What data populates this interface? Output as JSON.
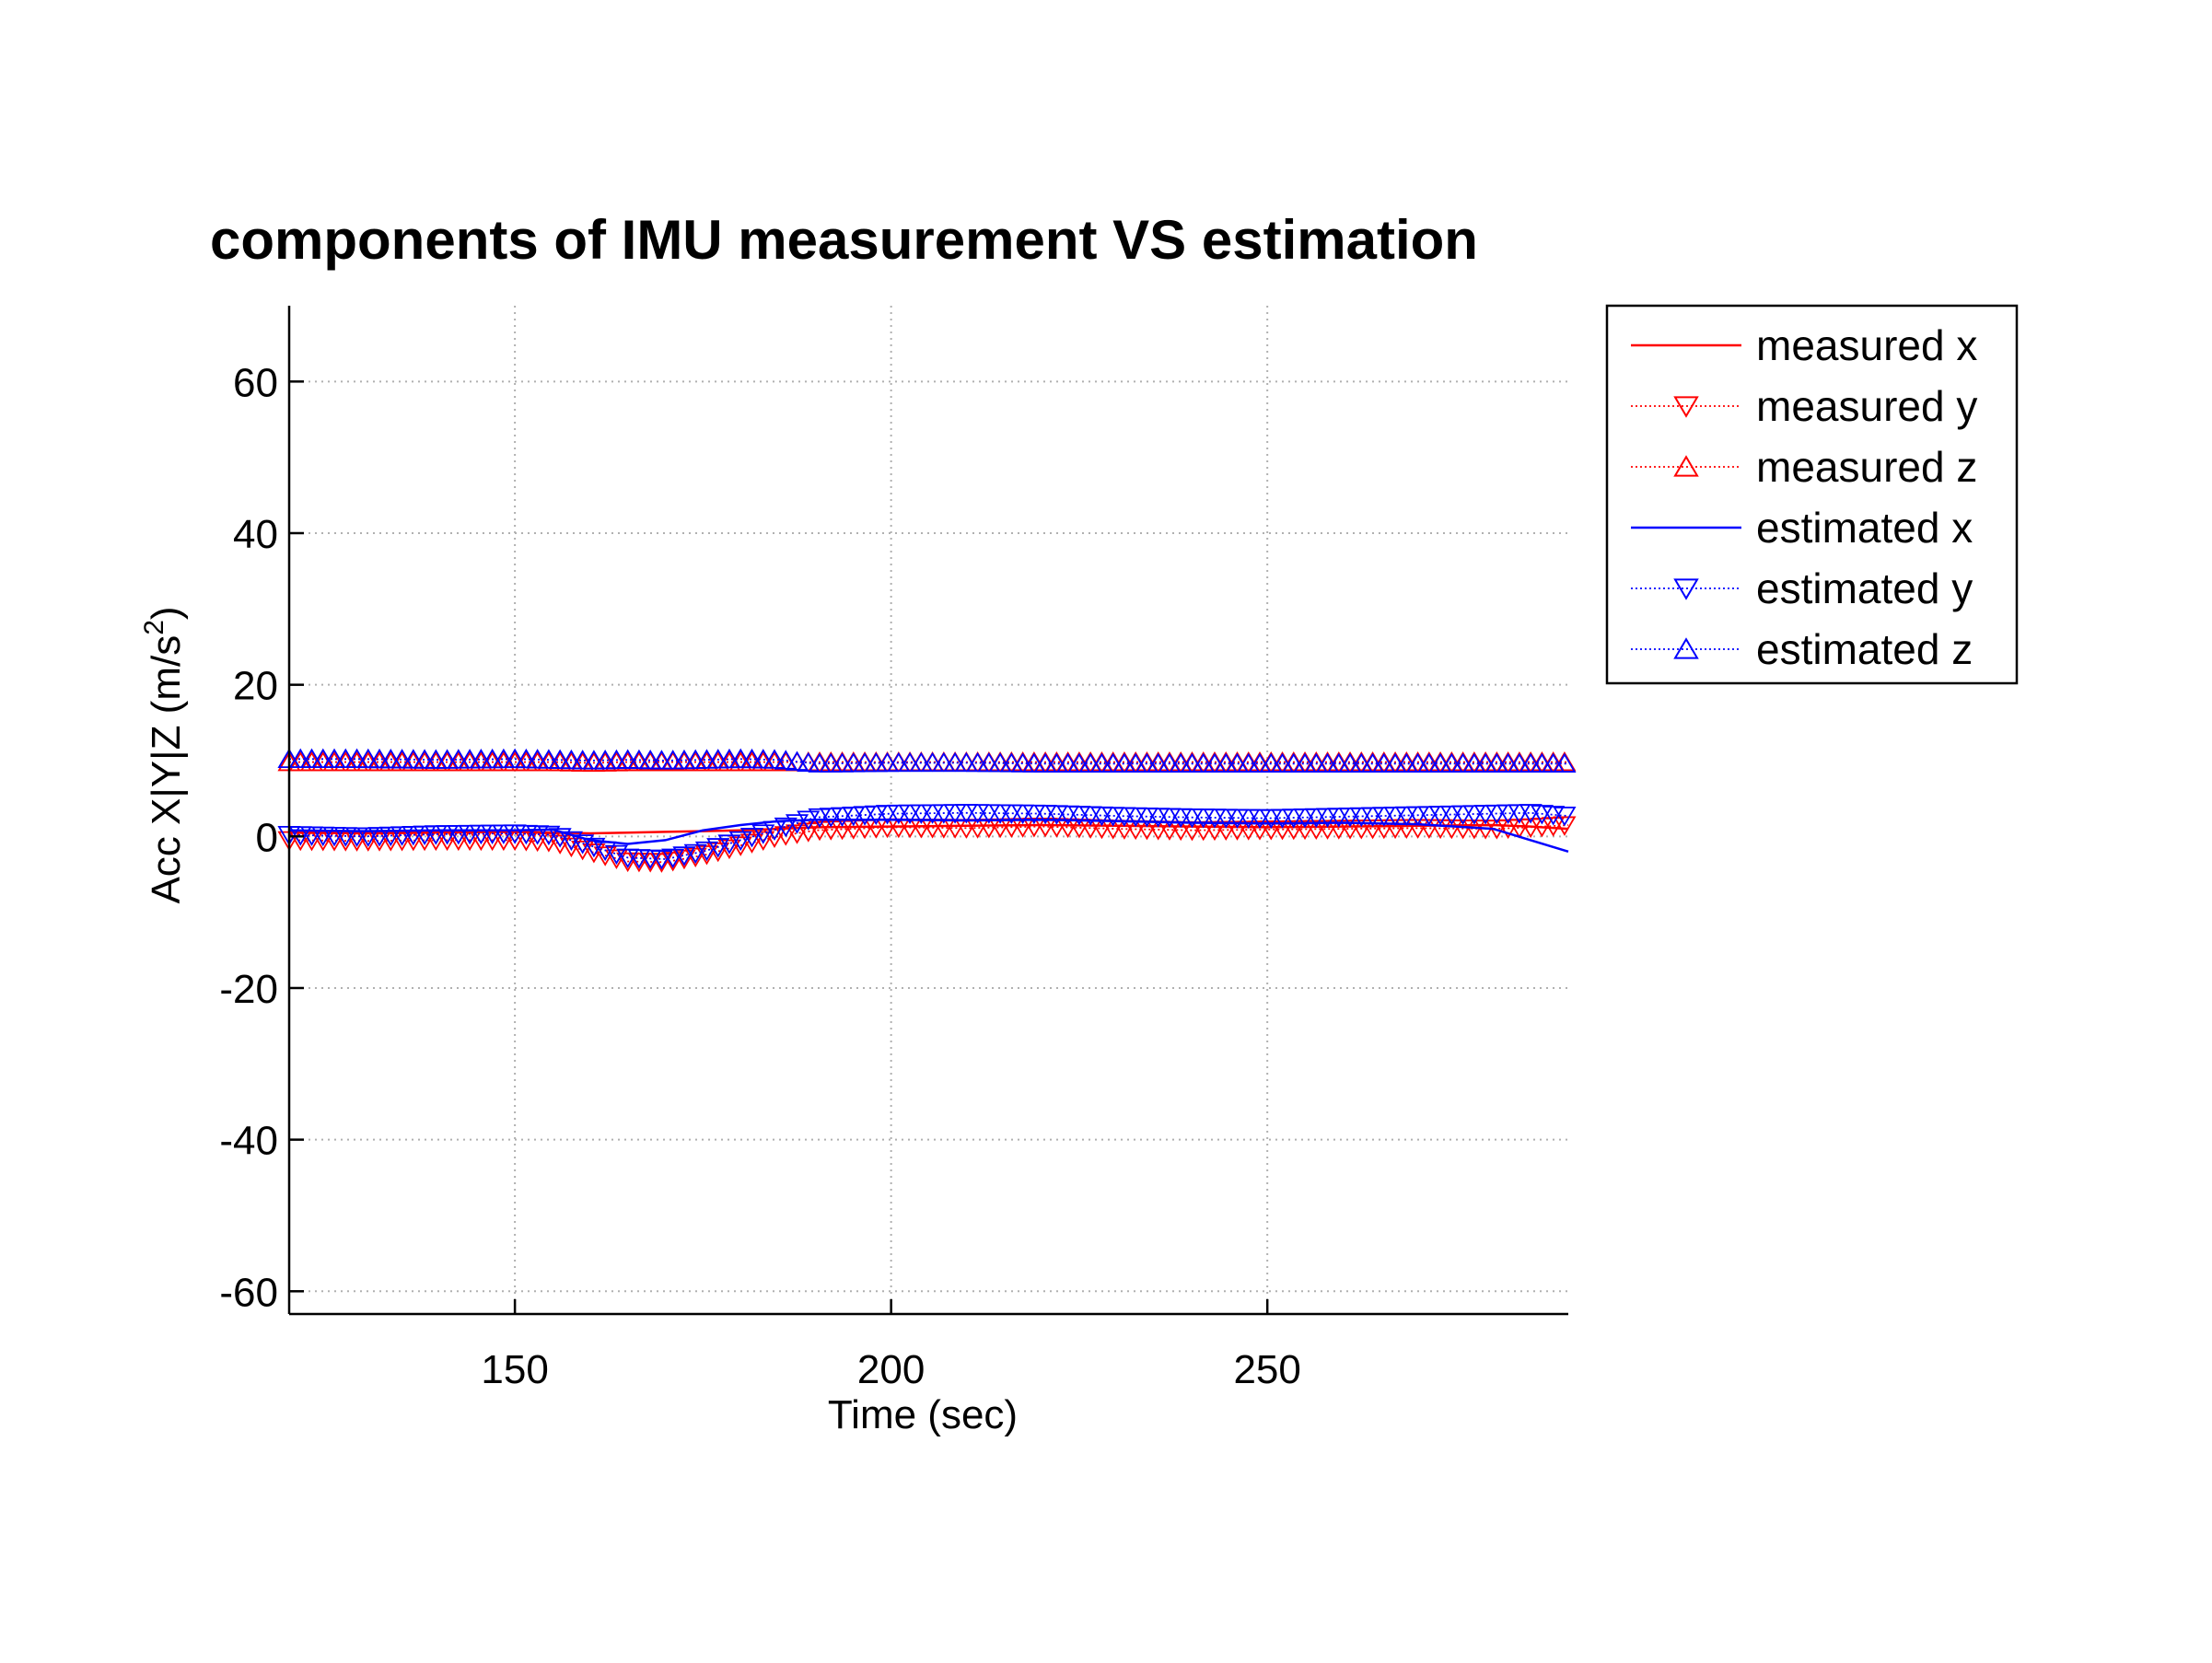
{
  "chart_data": {
    "type": "line",
    "title": "components of IMU measurement VS estimation",
    "xlabel": "Time (sec)",
    "ylabel_main": "Acc X|Y|Z (m/s",
    "ylabel_sup": "2",
    "ylabel_close": ")",
    "xlim": [
      120,
      290
    ],
    "ylim": [
      -63,
      70
    ],
    "x_ticks": [
      150,
      200,
      250
    ],
    "y_ticks": [
      60,
      40,
      20,
      0,
      -20,
      -40,
      -60
    ],
    "grid": true,
    "legend_position": "outside-right",
    "x": [
      120,
      130,
      140,
      150,
      155,
      160,
      165,
      170,
      175,
      180,
      185,
      190,
      200,
      210,
      220,
      230,
      240,
      250,
      260,
      270,
      280,
      285,
      290
    ],
    "series": [
      {
        "name": "measured x",
        "color": "#ff0000",
        "line": "solid",
        "marker": "none",
        "values": [
          0.5,
          0.4,
          0.5,
          0.6,
          0.5,
          0.4,
          0.5,
          0.6,
          0.7,
          0.8,
          1.0,
          1.2,
          1.3,
          1.4,
          1.5,
          1.4,
          1.3,
          1.2,
          1.3,
          1.4,
          1.5,
          1.3,
          1.0
        ]
      },
      {
        "name": "measured y",
        "color": "#ff0000",
        "line": "dotted",
        "marker": "triangle-down",
        "values": [
          -0.5,
          -0.6,
          -0.5,
          -0.5,
          -0.7,
          -2.0,
          -3.3,
          -3.4,
          -2.5,
          -1.2,
          0.0,
          0.8,
          1.2,
          1.1,
          1.3,
          1.0,
          0.8,
          0.9,
          1.0,
          1.1,
          1.0,
          1.2,
          1.5
        ]
      },
      {
        "name": "measured z",
        "color": "#ff0000",
        "line": "dotted",
        "marker": "triangle-up",
        "values": [
          9.8,
          9.8,
          9.8,
          9.8,
          9.8,
          9.7,
          9.8,
          9.8,
          9.8,
          9.8,
          9.8,
          9.8,
          9.8,
          9.8,
          9.8,
          9.8,
          9.8,
          9.8,
          9.8,
          9.8,
          9.8,
          9.8,
          9.8
        ]
      },
      {
        "name": "estimated x",
        "color": "#0000ff",
        "line": "solid",
        "marker": "none",
        "values": [
          0.8,
          0.7,
          0.8,
          0.8,
          0.9,
          -0.5,
          -1.0,
          -0.5,
          0.8,
          1.5,
          2.0,
          2.2,
          2.2,
          2.1,
          2.2,
          2.0,
          1.8,
          1.7,
          1.8,
          1.6,
          1.0,
          -0.5,
          -2.0
        ]
      },
      {
        "name": "estimated y",
        "color": "#0000ff",
        "line": "dotted",
        "marker": "triangle-down",
        "values": [
          0.2,
          0.0,
          0.3,
          0.4,
          0.2,
          -1.2,
          -2.8,
          -3.0,
          -2.0,
          -0.5,
          1.0,
          2.5,
          3.0,
          3.1,
          3.0,
          2.7,
          2.5,
          2.4,
          2.6,
          2.8,
          3.0,
          3.1,
          2.7
        ]
      },
      {
        "name": "estimated z",
        "color": "#0000ff",
        "line": "dotted",
        "marker": "triangle-up",
        "values": [
          10.2,
          10.2,
          10.1,
          10.2,
          10.1,
          10.0,
          10.1,
          10.0,
          10.1,
          10.2,
          10.1,
          9.6,
          9.7,
          9.7,
          9.6,
          9.6,
          9.6,
          9.6,
          9.6,
          9.6,
          9.6,
          9.6,
          9.6
        ]
      }
    ]
  }
}
